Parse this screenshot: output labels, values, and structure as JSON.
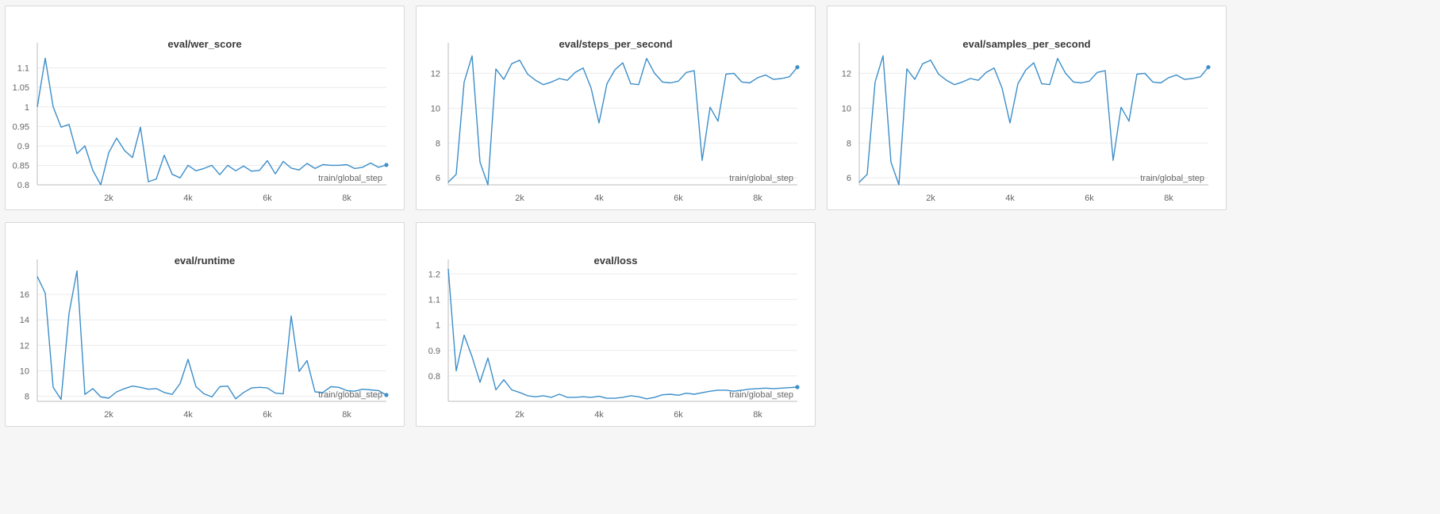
{
  "colors": {
    "line": "#3c8ec9",
    "grid": "#ececec",
    "axis": "#bdbdbd",
    "text": "#666666"
  },
  "chart_data": [
    {
      "type": "line",
      "title": "eval/wer_score",
      "xlabel": "train/global_step",
      "ylabel": "",
      "xlim": [
        200,
        9000
      ],
      "ylim": [
        0.8,
        1.14
      ],
      "x_ticks": [
        2000,
        4000,
        6000,
        8000
      ],
      "x_tick_labels": [
        "2k",
        "4k",
        "6k",
        "8k"
      ],
      "y_ticks": [
        0.8,
        0.85,
        0.9,
        0.95,
        1,
        1.05,
        1.1
      ],
      "y_tick_labels": [
        "0.8",
        "0.85",
        "0.9",
        "0.95",
        "1",
        "1.05",
        "1.1"
      ],
      "grid": true,
      "series": [
        {
          "x": [
            200,
            400,
            600,
            800,
            1000,
            1200,
            1400,
            1600,
            1800,
            2000,
            2200,
            2400,
            2600,
            2800,
            3000,
            3200,
            3400,
            3600,
            3800,
            4000,
            4200,
            4400,
            4600,
            4800,
            5000,
            5200,
            5400,
            5600,
            5800,
            6000,
            6200,
            6400,
            6600,
            6800,
            7000,
            7200,
            7400,
            7600,
            7800,
            8000,
            8200,
            8400,
            8600,
            8800,
            9000
          ],
          "values": [
            1.0,
            1.125,
            1.0,
            0.948,
            0.955,
            0.88,
            0.9,
            0.837,
            0.8,
            0.882,
            0.92,
            0.888,
            0.87,
            0.948,
            0.808,
            0.815,
            0.876,
            0.827,
            0.818,
            0.85,
            0.836,
            0.842,
            0.85,
            0.826,
            0.85,
            0.836,
            0.848,
            0.835,
            0.837,
            0.862,
            0.828,
            0.86,
            0.843,
            0.838,
            0.855,
            0.842,
            0.852,
            0.85,
            0.85,
            0.852,
            0.842,
            0.845,
            0.856,
            0.845,
            0.851
          ]
        }
      ]
    },
    {
      "type": "line",
      "title": "eval/steps_per_second",
      "xlabel": "train/global_step",
      "ylabel": "",
      "xlim": [
        200,
        9000
      ],
      "ylim": [
        5.6,
        13.2
      ],
      "x_ticks": [
        2000,
        4000,
        6000,
        8000
      ],
      "x_tick_labels": [
        "2k",
        "4k",
        "6k",
        "8k"
      ],
      "y_ticks": [
        6,
        8,
        10,
        12
      ],
      "y_tick_labels": [
        "6",
        "8",
        "10",
        "12"
      ],
      "grid": true,
      "series": [
        {
          "x": [
            200,
            400,
            600,
            800,
            1000,
            1200,
            1400,
            1600,
            1800,
            2000,
            2200,
            2400,
            2600,
            2800,
            3000,
            3200,
            3400,
            3600,
            3800,
            4000,
            4200,
            4400,
            4600,
            4800,
            5000,
            5200,
            5400,
            5600,
            5800,
            6000,
            6200,
            6400,
            6600,
            6800,
            7000,
            7200,
            7400,
            7600,
            7800,
            8000,
            8200,
            8400,
            8600,
            8800,
            9000
          ],
          "values": [
            5.75,
            6.2,
            11.5,
            13.0,
            6.9,
            5.6,
            12.25,
            11.65,
            12.55,
            12.75,
            11.95,
            11.6,
            11.35,
            11.5,
            11.7,
            11.6,
            12.05,
            12.3,
            11.15,
            9.15,
            11.4,
            12.2,
            12.6,
            11.4,
            11.35,
            12.85,
            12.0,
            11.5,
            11.45,
            11.55,
            12.05,
            12.15,
            7.0,
            10.05,
            9.25,
            11.95,
            12.0,
            11.5,
            11.45,
            11.75,
            11.9,
            11.65,
            11.7,
            11.8,
            12.35
          ]
        }
      ]
    },
    {
      "type": "line",
      "title": "eval/samples_per_second",
      "xlabel": "train/global_step",
      "ylabel": "",
      "xlim": [
        200,
        9000
      ],
      "ylim": [
        5.6,
        13.2
      ],
      "x_ticks": [
        2000,
        4000,
        6000,
        8000
      ],
      "x_tick_labels": [
        "2k",
        "4k",
        "6k",
        "8k"
      ],
      "y_ticks": [
        6,
        8,
        10,
        12
      ],
      "y_tick_labels": [
        "6",
        "8",
        "10",
        "12"
      ],
      "grid": true,
      "series": [
        {
          "x": [
            200,
            400,
            600,
            800,
            1000,
            1200,
            1400,
            1600,
            1800,
            2000,
            2200,
            2400,
            2600,
            2800,
            3000,
            3200,
            3400,
            3600,
            3800,
            4000,
            4200,
            4400,
            4600,
            4800,
            5000,
            5200,
            5400,
            5600,
            5800,
            6000,
            6200,
            6400,
            6600,
            6800,
            7000,
            7200,
            7400,
            7600,
            7800,
            8000,
            8200,
            8400,
            8600,
            8800,
            9000
          ],
          "values": [
            5.75,
            6.2,
            11.5,
            13.0,
            6.9,
            5.6,
            12.25,
            11.65,
            12.55,
            12.75,
            11.95,
            11.6,
            11.35,
            11.5,
            11.7,
            11.6,
            12.05,
            12.3,
            11.15,
            9.15,
            11.4,
            12.2,
            12.6,
            11.4,
            11.35,
            12.85,
            12.0,
            11.5,
            11.45,
            11.55,
            12.05,
            12.15,
            7.0,
            10.05,
            9.25,
            11.95,
            12.0,
            11.5,
            11.45,
            11.75,
            11.9,
            11.65,
            11.7,
            11.8,
            12.35
          ]
        }
      ]
    },
    {
      "type": "line",
      "title": "eval/runtime",
      "xlabel": "train/global_step",
      "ylabel": "",
      "xlim": [
        200,
        9000
      ],
      "ylim": [
        7.6,
        18.0
      ],
      "x_ticks": [
        2000,
        4000,
        6000,
        8000
      ],
      "x_tick_labels": [
        "2k",
        "4k",
        "6k",
        "8k"
      ],
      "y_ticks": [
        8,
        10,
        12,
        14,
        16
      ],
      "y_tick_labels": [
        "8",
        "10",
        "12",
        "14",
        "16"
      ],
      "grid": true,
      "series": [
        {
          "x": [
            200,
            400,
            600,
            800,
            1000,
            1200,
            1400,
            1600,
            1800,
            2000,
            2200,
            2400,
            2600,
            2800,
            3000,
            3200,
            3400,
            3600,
            3800,
            4000,
            4200,
            4400,
            4600,
            4800,
            5000,
            5200,
            5400,
            5600,
            5800,
            6000,
            6200,
            6400,
            6600,
            6800,
            7000,
            7200,
            7400,
            7600,
            7800,
            8000,
            8200,
            8400,
            8600,
            8800,
            9000
          ],
          "values": [
            17.4,
            16.1,
            8.7,
            7.75,
            14.5,
            17.85,
            8.15,
            8.6,
            7.95,
            7.85,
            8.35,
            8.6,
            8.8,
            8.7,
            8.55,
            8.6,
            8.3,
            8.15,
            9.0,
            10.9,
            8.75,
            8.2,
            7.95,
            8.75,
            8.8,
            7.8,
            8.3,
            8.65,
            8.7,
            8.65,
            8.25,
            8.2,
            14.3,
            9.95,
            10.8,
            8.35,
            8.3,
            8.75,
            8.7,
            8.45,
            8.4,
            8.55,
            8.5,
            8.45,
            8.1
          ]
        }
      ]
    },
    {
      "type": "line",
      "title": "eval/loss",
      "xlabel": "train/global_step",
      "ylabel": "",
      "xlim": [
        200,
        9000
      ],
      "ylim": [
        0.7,
        1.22
      ],
      "x_ticks": [
        2000,
        4000,
        6000,
        8000
      ],
      "x_tick_labels": [
        "2k",
        "4k",
        "6k",
        "8k"
      ],
      "y_ticks": [
        0.8,
        0.9,
        1,
        1.1,
        1.2
      ],
      "y_tick_labels": [
        "0.8",
        "0.9",
        "1",
        "1.1",
        "1.2"
      ],
      "grid": true,
      "series": [
        {
          "x": [
            200,
            400,
            600,
            800,
            1000,
            1200,
            1400,
            1600,
            1800,
            2000,
            2200,
            2400,
            2600,
            2800,
            3000,
            3200,
            3400,
            3600,
            3800,
            4000,
            4200,
            4400,
            4600,
            4800,
            5000,
            5200,
            5400,
            5600,
            5800,
            6000,
            6200,
            6400,
            6600,
            6800,
            7000,
            7200,
            7400,
            7600,
            7800,
            8000,
            8200,
            8400,
            8600,
            8800,
            9000
          ],
          "values": [
            1.22,
            0.82,
            0.96,
            0.875,
            0.775,
            0.87,
            0.745,
            0.785,
            0.745,
            0.735,
            0.722,
            0.718,
            0.722,
            0.716,
            0.728,
            0.716,
            0.716,
            0.718,
            0.716,
            0.72,
            0.712,
            0.712,
            0.716,
            0.722,
            0.718,
            0.71,
            0.716,
            0.726,
            0.728,
            0.724,
            0.732,
            0.728,
            0.734,
            0.74,
            0.744,
            0.744,
            0.74,
            0.744,
            0.748,
            0.75,
            0.752,
            0.75,
            0.752,
            0.754,
            0.756
          ]
        }
      ]
    }
  ]
}
